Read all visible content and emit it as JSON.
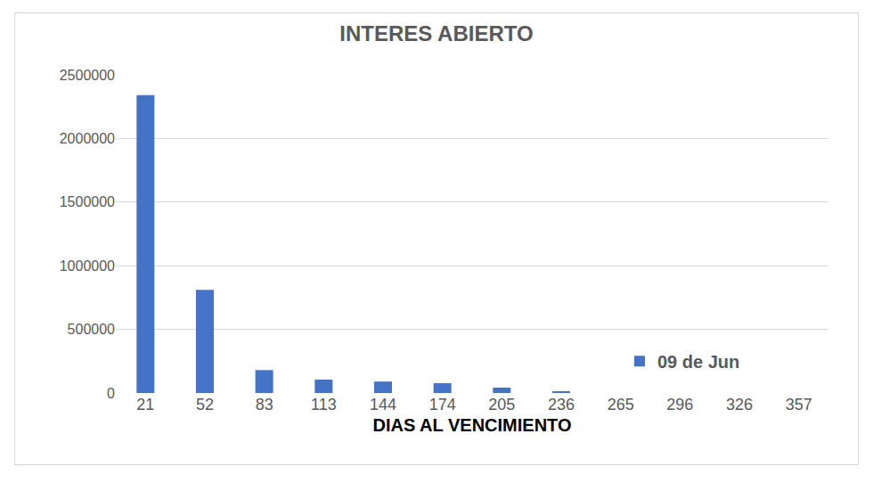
{
  "chart_data": {
    "type": "bar",
    "title": "INTERES ABIERTO",
    "x_label": "DIAS AL VENCIMIENTO",
    "categories": [
      "21",
      "52",
      "83",
      "113",
      "144",
      "174",
      "205",
      "236",
      "265",
      "296",
      "326",
      "357"
    ],
    "series": [
      {
        "name": "09 de Jun",
        "color": "#4472c4",
        "values": [
          2340000,
          810000,
          180000,
          105000,
          90000,
          77000,
          42000,
          14000,
          0,
          0,
          0,
          0
        ]
      }
    ],
    "ylim": [
      0,
      2500000
    ],
    "yticks": [
      0,
      500000,
      1000000,
      1500000,
      2000000,
      2500000
    ],
    "grid": true,
    "legend": "lower right"
  }
}
